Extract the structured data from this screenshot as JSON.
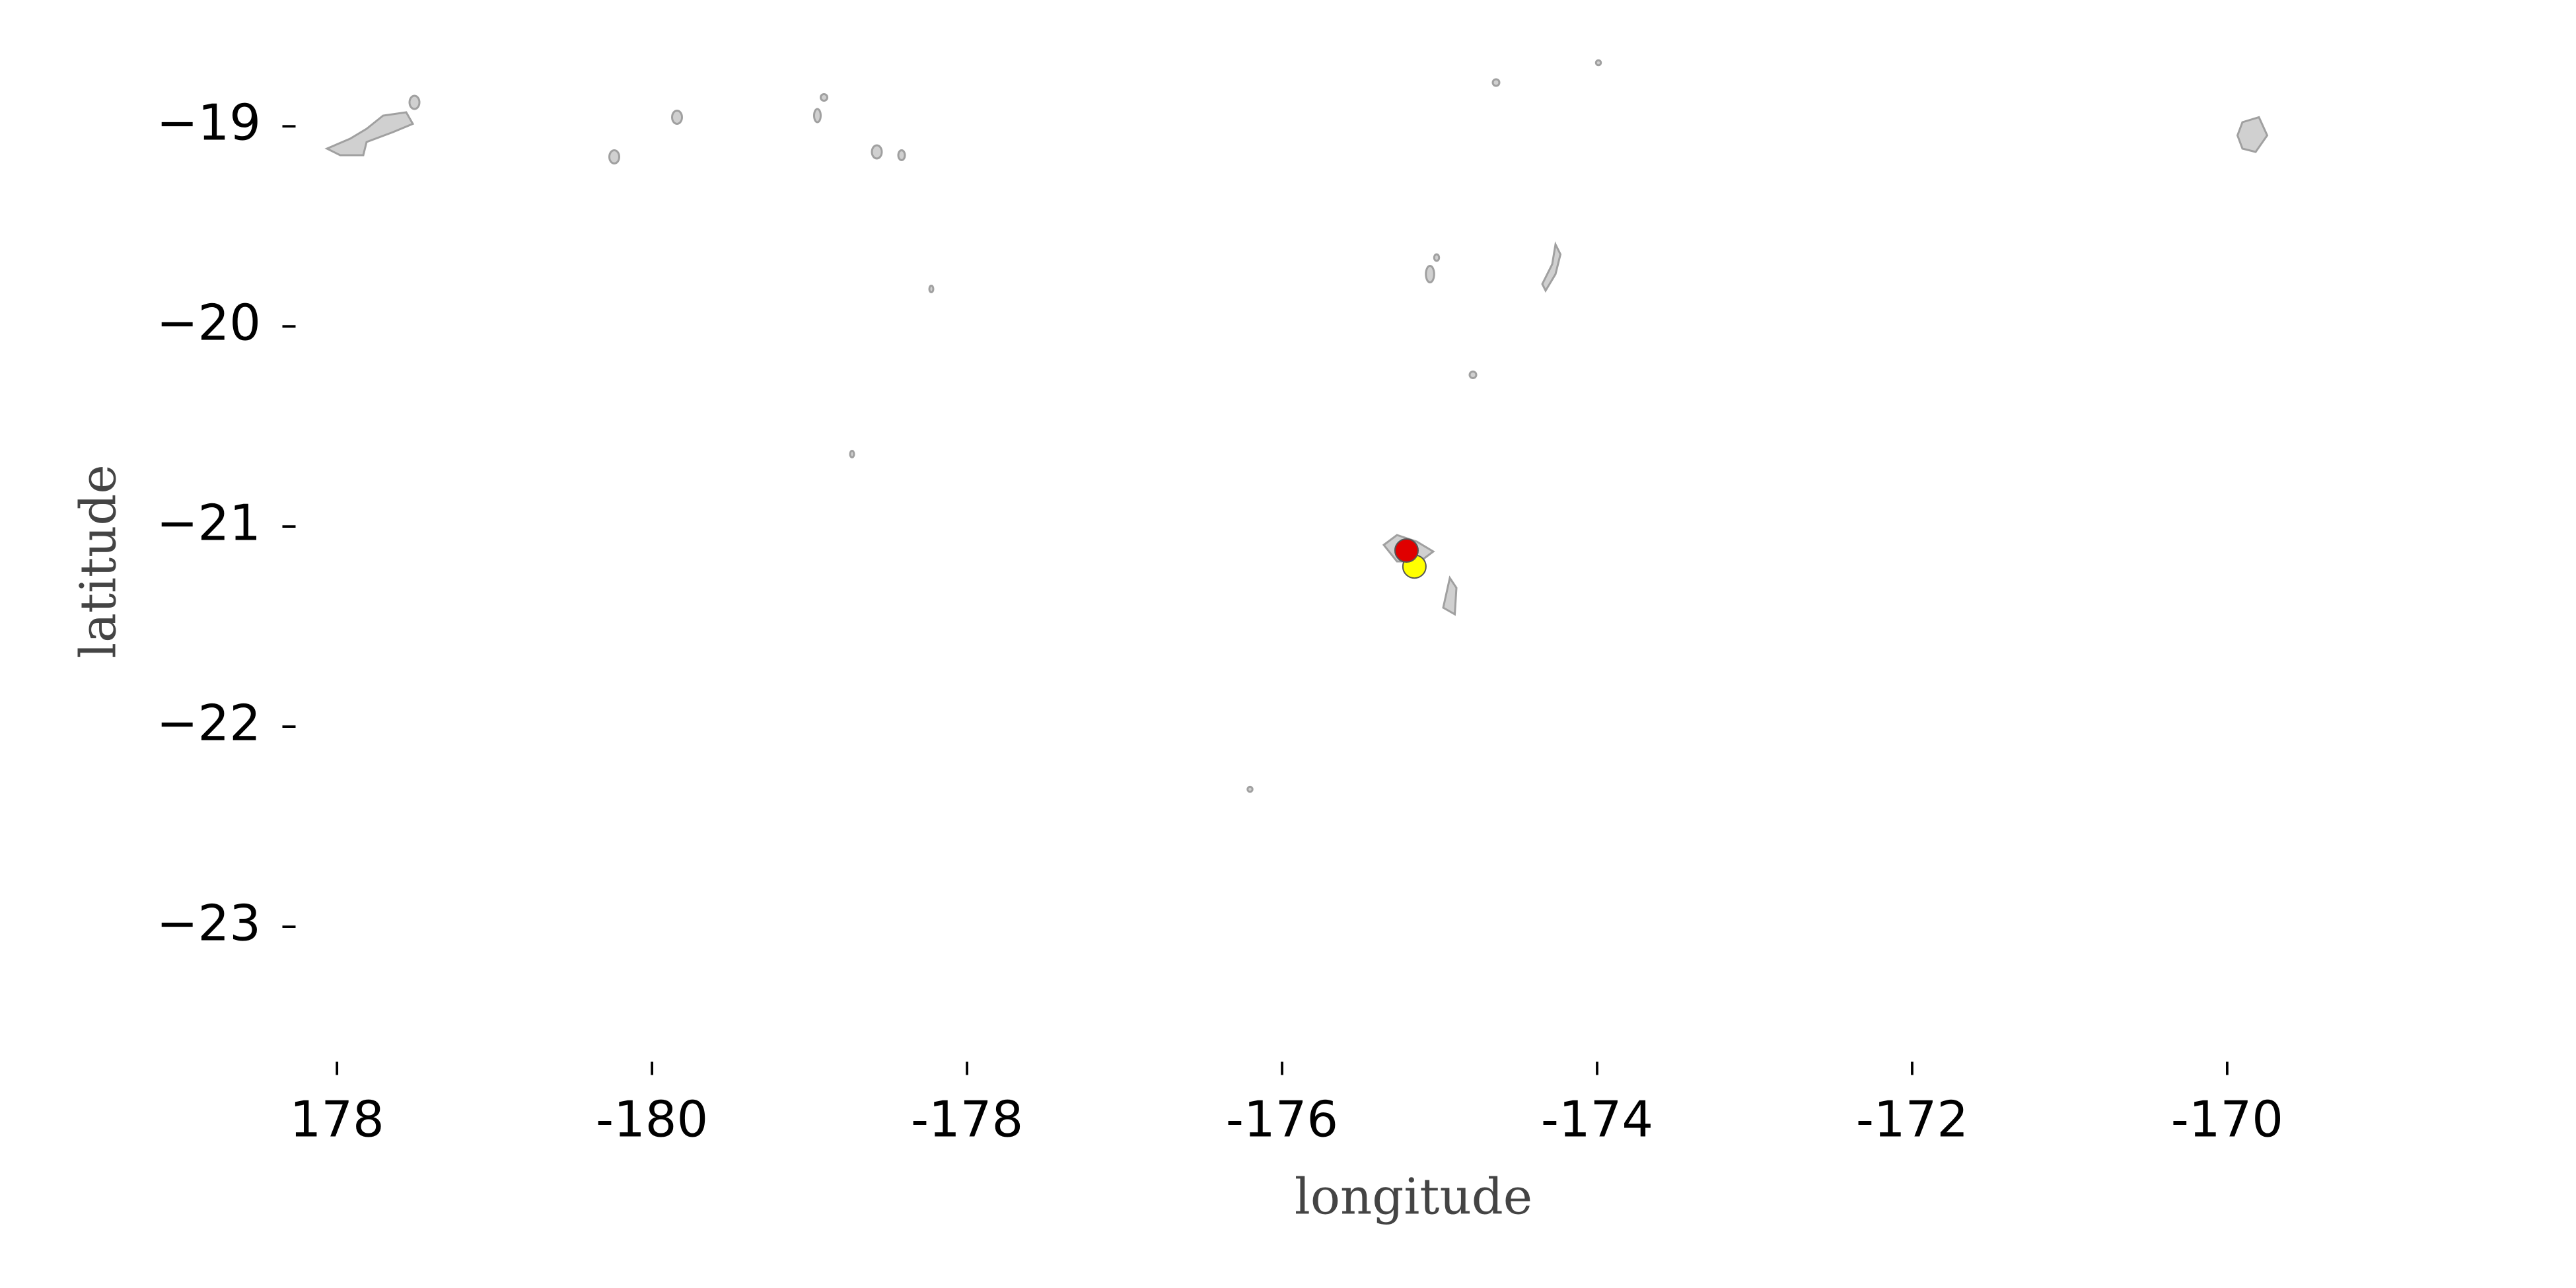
{
  "chart_data": {
    "type": "scatter",
    "xlabel": "longitude",
    "ylabel": "latitude",
    "xlim": [
      -182.2,
      -168.1
    ],
    "ylim": [
      -23.65,
      -18.6
    ],
    "xticks": [
      {
        "value": -182,
        "label": "178"
      },
      -180,
      -178,
      -176,
      -174,
      -172,
      -170
    ],
    "yticks": [
      {
        "value": -19,
        "label": "−19"
      },
      {
        "value": -20,
        "label": "−20"
      },
      {
        "value": -21,
        "label": "−21"
      },
      {
        "value": -22,
        "label": "−22"
      },
      {
        "value": -23,
        "label": "−23"
      }
    ],
    "series": [
      {
        "color": "#ffff00",
        "x": [
          -175.16
        ],
        "y": [
          -21.2
        ]
      },
      {
        "color": "#e00000",
        "x": [
          -175.21
        ],
        "y": [
          -21.12
        ]
      }
    ]
  }
}
